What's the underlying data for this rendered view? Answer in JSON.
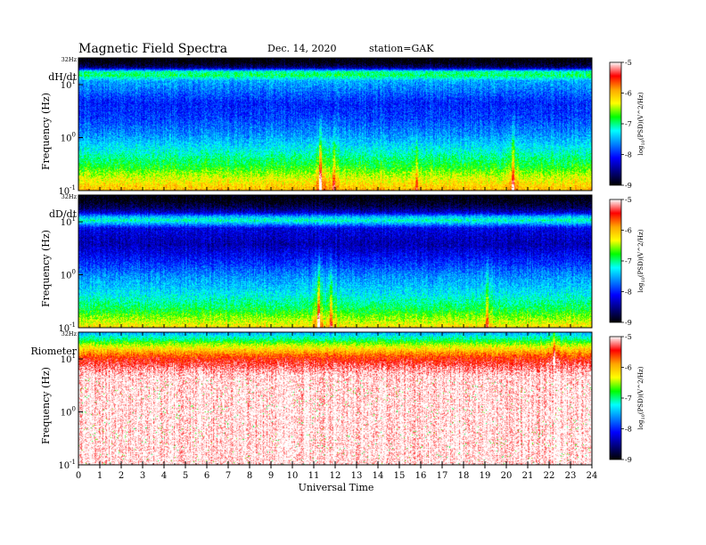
{
  "header": {
    "title": "Magnetic  Field  Spectra",
    "date": "Dec. 14, 2020",
    "station": "station=GAK"
  },
  "chart_data": {
    "type": "heatmap",
    "title": "Magnetic  Field  Spectra",
    "xlabel": "Universal Time",
    "xlim": [
      0,
      24
    ],
    "xticks": [
      "0",
      "1",
      "2",
      "3",
      "4",
      "5",
      "6",
      "7",
      "8",
      "9",
      "10",
      "11",
      "12",
      "13",
      "14",
      "15",
      "16",
      "17",
      "18",
      "19",
      "20",
      "21",
      "22",
      "23",
      "24"
    ],
    "ylabel": "Frequency  (Hz)",
    "yscale": "log",
    "top_freq_label": "32Hz",
    "yticks": [
      {
        "value": 10,
        "base": "10",
        "exp": "1"
      },
      {
        "value": 1,
        "base": "10",
        "exp": "0"
      },
      {
        "value": 0.1,
        "base": "10",
        "exp": "-1"
      }
    ],
    "colorbar": {
      "label": "log",
      "label_sub": "10",
      "label_rest": "(PSD)(V^2/Hz)",
      "range": [
        -9,
        -5
      ],
      "ticks": [
        "-5",
        "-6",
        "-7",
        "-8",
        "-9"
      ],
      "colors": [
        "#ffffff",
        "#ff0000",
        "#ffa500",
        "#ffff00",
        "#00ff00",
        "#00ffff",
        "#0080ff",
        "#0000ff",
        "#000080",
        "#000000"
      ]
    },
    "panels": [
      {
        "name": "dH/dt",
        "profile": [
          [
            0.03,
            -9.0
          ],
          [
            0.07,
            -8.6
          ],
          [
            0.1,
            -7.1
          ],
          [
            0.13,
            -6.9
          ],
          [
            0.17,
            -7.5
          ],
          [
            0.24,
            -7.7
          ],
          [
            0.34,
            -8.0
          ],
          [
            0.45,
            -7.9
          ],
          [
            0.58,
            -7.6
          ],
          [
            0.7,
            -7.2
          ],
          [
            0.82,
            -6.8
          ],
          [
            0.9,
            -6.4
          ],
          [
            1.0,
            -6.0
          ]
        ],
        "events": [
          {
            "hour": 11.3,
            "strength": 1.0
          },
          {
            "hour": 11.9,
            "strength": 0.5
          },
          {
            "hour": 15.8,
            "strength": 0.4
          },
          {
            "hour": 20.3,
            "strength": 0.7
          }
        ]
      },
      {
        "name": "dD/dt",
        "profile": [
          [
            0.03,
            -9.0
          ],
          [
            0.09,
            -8.7
          ],
          [
            0.13,
            -8.3
          ],
          [
            0.16,
            -7.5
          ],
          [
            0.19,
            -7.1
          ],
          [
            0.25,
            -8.2
          ],
          [
            0.37,
            -8.4
          ],
          [
            0.5,
            -8.0
          ],
          [
            0.62,
            -7.6
          ],
          [
            0.74,
            -7.3
          ],
          [
            0.86,
            -6.9
          ],
          [
            0.94,
            -6.5
          ],
          [
            1.0,
            -6.2
          ]
        ],
        "events": [
          {
            "hour": 11.2,
            "strength": 1.0
          },
          {
            "hour": 11.8,
            "strength": 0.6
          },
          {
            "hour": 19.1,
            "strength": 0.5
          }
        ]
      },
      {
        "name": "Riometer",
        "profile": [
          [
            0.0,
            -7.5
          ],
          [
            0.05,
            -7.0
          ],
          [
            0.1,
            -6.4
          ],
          [
            0.15,
            -5.9
          ],
          [
            0.2,
            -5.5
          ],
          [
            0.27,
            -5.2
          ],
          [
            0.33,
            -5.02
          ],
          [
            0.5,
            -5.0
          ],
          [
            1.0,
            -5.0
          ]
        ],
        "events": [
          {
            "hour": 22.2,
            "strength": 0.8
          }
        ]
      }
    ]
  }
}
